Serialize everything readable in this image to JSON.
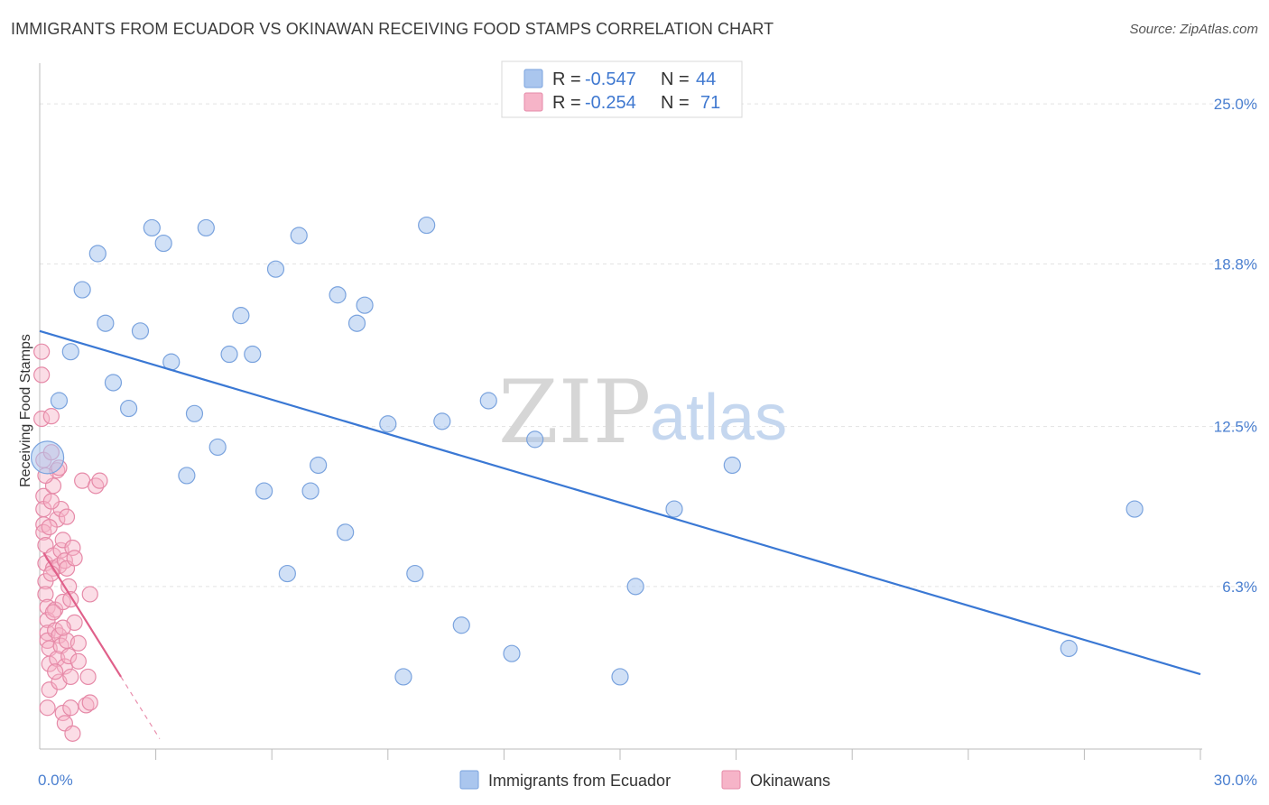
{
  "header": {
    "title": "IMMIGRANTS FROM ECUADOR VS OKINAWAN RECEIVING FOOD STAMPS CORRELATION CHART",
    "source": "Source: ZipAtlas.com"
  },
  "legend_top": {
    "rows": [
      {
        "r_label": "R = ",
        "r_value": "-0.547",
        "n_label": "N = ",
        "n_value": "44",
        "color": "#aac6ee"
      },
      {
        "r_label": "R = ",
        "r_value": "-0.254",
        "n_label": "N = ",
        "n_value": "71",
        "color": "#f6b4c8"
      }
    ]
  },
  "legend_bottom": {
    "items": [
      {
        "label": "Immigrants from Ecuador",
        "color": "#aac6ee"
      },
      {
        "label": "Okinawans",
        "color": "#f6b4c8"
      }
    ]
  },
  "watermark": {
    "zip": "ZIP",
    "atlas": "atlas"
  },
  "colors": {
    "blue_fill": "#aac6ee",
    "blue_stroke": "#7aa3de",
    "blue_line": "#3a78d4",
    "pink_fill": "#f6b4c8",
    "pink_stroke": "#e68aa8",
    "pink_line": "#e0608a",
    "grid": "#e3e3e3",
    "tick_text": "#4a7fd0"
  },
  "chart_data": {
    "type": "scatter",
    "title": "IMMIGRANTS FROM ECUADOR VS OKINAWAN RECEIVING FOOD STAMPS CORRELATION CHART",
    "xlabel": "",
    "ylabel": "Receiving Food Stamps",
    "xlim": [
      0,
      30
    ],
    "ylim": [
      0,
      26.3
    ],
    "x_tick_labels": [
      "0.0%",
      "30.0%"
    ],
    "x_tick_values": [
      0,
      30
    ],
    "x_minor_ticks": [
      3,
      6,
      9,
      12,
      15,
      18,
      21,
      24,
      27,
      30
    ],
    "y_ticks": [
      {
        "value": 6.3,
        "label": "6.3%"
      },
      {
        "value": 12.5,
        "label": "12.5%"
      },
      {
        "value": 18.8,
        "label": "18.8%"
      },
      {
        "value": 25.0,
        "label": "25.0%"
      }
    ],
    "series": [
      {
        "name": "Immigrants from Ecuador",
        "R": -0.547,
        "N": 44,
        "trend": {
          "x": [
            0,
            30
          ],
          "y": [
            16.2,
            2.9
          ]
        },
        "points": [
          {
            "x": 0.2,
            "y": 11.3,
            "big": true
          },
          {
            "x": 0.5,
            "y": 13.5
          },
          {
            "x": 0.8,
            "y": 15.4
          },
          {
            "x": 1.1,
            "y": 17.8
          },
          {
            "x": 1.5,
            "y": 19.2
          },
          {
            "x": 1.7,
            "y": 16.5
          },
          {
            "x": 1.9,
            "y": 14.2
          },
          {
            "x": 2.3,
            "y": 13.2
          },
          {
            "x": 2.6,
            "y": 16.2
          },
          {
            "x": 2.9,
            "y": 20.2
          },
          {
            "x": 3.2,
            "y": 19.6
          },
          {
            "x": 3.4,
            "y": 15.0
          },
          {
            "x": 3.8,
            "y": 10.6
          },
          {
            "x": 4.0,
            "y": 13.0
          },
          {
            "x": 4.3,
            "y": 20.2
          },
          {
            "x": 4.6,
            "y": 11.7
          },
          {
            "x": 4.9,
            "y": 15.3
          },
          {
            "x": 5.2,
            "y": 16.8
          },
          {
            "x": 5.5,
            "y": 15.3
          },
          {
            "x": 5.8,
            "y": 10.0
          },
          {
            "x": 6.1,
            "y": 18.6
          },
          {
            "x": 6.4,
            "y": 6.8
          },
          {
            "x": 6.7,
            "y": 19.9
          },
          {
            "x": 7.0,
            "y": 10.0
          },
          {
            "x": 7.2,
            "y": 11.0
          },
          {
            "x": 7.7,
            "y": 17.6
          },
          {
            "x": 7.9,
            "y": 8.4
          },
          {
            "x": 8.2,
            "y": 16.5
          },
          {
            "x": 8.4,
            "y": 17.2
          },
          {
            "x": 9.0,
            "y": 12.6
          },
          {
            "x": 9.4,
            "y": 2.8
          },
          {
            "x": 9.7,
            "y": 6.8
          },
          {
            "x": 10.0,
            "y": 20.3
          },
          {
            "x": 10.4,
            "y": 12.7
          },
          {
            "x": 10.9,
            "y": 4.8
          },
          {
            "x": 11.6,
            "y": 13.5
          },
          {
            "x": 12.2,
            "y": 3.7
          },
          {
            "x": 12.8,
            "y": 12.0
          },
          {
            "x": 15.0,
            "y": 2.8
          },
          {
            "x": 15.4,
            "y": 6.3
          },
          {
            "x": 16.4,
            "y": 9.3
          },
          {
            "x": 17.9,
            "y": 11.0
          },
          {
            "x": 26.6,
            "y": 3.9
          },
          {
            "x": 28.3,
            "y": 9.3
          }
        ]
      },
      {
        "name": "Okinawans",
        "R": -0.254,
        "N": 71,
        "trend": {
          "x": [
            0.1,
            2.1
          ],
          "y": [
            7.6,
            2.8
          ]
        },
        "trend_dashed": {
          "x": [
            2.1,
            3.1
          ],
          "y": [
            2.8,
            0.4
          ]
        },
        "points": [
          {
            "x": 0.05,
            "y": 15.4
          },
          {
            "x": 0.05,
            "y": 14.5
          },
          {
            "x": 0.05,
            "y": 12.8
          },
          {
            "x": 0.1,
            "y": 11.2
          },
          {
            "x": 0.1,
            "y": 9.8
          },
          {
            "x": 0.1,
            "y": 9.3
          },
          {
            "x": 0.1,
            "y": 8.7
          },
          {
            "x": 0.1,
            "y": 8.4
          },
          {
            "x": 0.15,
            "y": 7.9
          },
          {
            "x": 0.15,
            "y": 7.2
          },
          {
            "x": 0.15,
            "y": 6.5
          },
          {
            "x": 0.15,
            "y": 6.0
          },
          {
            "x": 0.2,
            "y": 5.5
          },
          {
            "x": 0.2,
            "y": 5.0
          },
          {
            "x": 0.2,
            "y": 4.5
          },
          {
            "x": 0.2,
            "y": 4.2
          },
          {
            "x": 0.25,
            "y": 3.9
          },
          {
            "x": 0.25,
            "y": 3.3
          },
          {
            "x": 0.25,
            "y": 2.3
          },
          {
            "x": 0.2,
            "y": 1.6
          },
          {
            "x": 0.3,
            "y": 12.9
          },
          {
            "x": 0.3,
            "y": 11.5
          },
          {
            "x": 0.35,
            "y": 10.2
          },
          {
            "x": 0.35,
            "y": 7.5
          },
          {
            "x": 0.35,
            "y": 7.0
          },
          {
            "x": 0.4,
            "y": 5.4
          },
          {
            "x": 0.4,
            "y": 4.6
          },
          {
            "x": 0.45,
            "y": 10.8
          },
          {
            "x": 0.45,
            "y": 8.9
          },
          {
            "x": 0.45,
            "y": 3.5
          },
          {
            "x": 0.5,
            "y": 10.9
          },
          {
            "x": 0.5,
            "y": 7.1
          },
          {
            "x": 0.5,
            "y": 4.4
          },
          {
            "x": 0.5,
            "y": 2.6
          },
          {
            "x": 0.55,
            "y": 9.3
          },
          {
            "x": 0.55,
            "y": 7.7
          },
          {
            "x": 0.55,
            "y": 4.0
          },
          {
            "x": 0.6,
            "y": 8.1
          },
          {
            "x": 0.6,
            "y": 5.7
          },
          {
            "x": 0.6,
            "y": 1.4
          },
          {
            "x": 0.65,
            "y": 7.3
          },
          {
            "x": 0.65,
            "y": 3.2
          },
          {
            "x": 0.65,
            "y": 1.0
          },
          {
            "x": 0.7,
            "y": 9.0
          },
          {
            "x": 0.7,
            "y": 7.0
          },
          {
            "x": 0.7,
            "y": 4.2
          },
          {
            "x": 0.75,
            "y": 6.3
          },
          {
            "x": 0.75,
            "y": 3.6
          },
          {
            "x": 0.8,
            "y": 5.8
          },
          {
            "x": 0.8,
            "y": 2.8
          },
          {
            "x": 0.8,
            "y": 1.6
          },
          {
            "x": 0.85,
            "y": 7.8
          },
          {
            "x": 0.85,
            "y": 0.6
          },
          {
            "x": 0.9,
            "y": 4.9
          },
          {
            "x": 1.0,
            "y": 4.1
          },
          {
            "x": 1.1,
            "y": 10.4
          },
          {
            "x": 1.2,
            "y": 1.7
          },
          {
            "x": 1.25,
            "y": 2.8
          },
          {
            "x": 1.3,
            "y": 6.0
          },
          {
            "x": 1.3,
            "y": 1.8
          },
          {
            "x": 1.45,
            "y": 10.2
          },
          {
            "x": 1.55,
            "y": 10.4
          },
          {
            "x": 0.3,
            "y": 9.6
          },
          {
            "x": 0.3,
            "y": 6.8
          },
          {
            "x": 0.35,
            "y": 5.3
          },
          {
            "x": 0.4,
            "y": 3.0
          },
          {
            "x": 0.6,
            "y": 4.7
          },
          {
            "x": 0.9,
            "y": 7.4
          },
          {
            "x": 0.25,
            "y": 8.6
          },
          {
            "x": 0.15,
            "y": 10.6
          },
          {
            "x": 1.0,
            "y": 3.4
          }
        ]
      }
    ]
  }
}
